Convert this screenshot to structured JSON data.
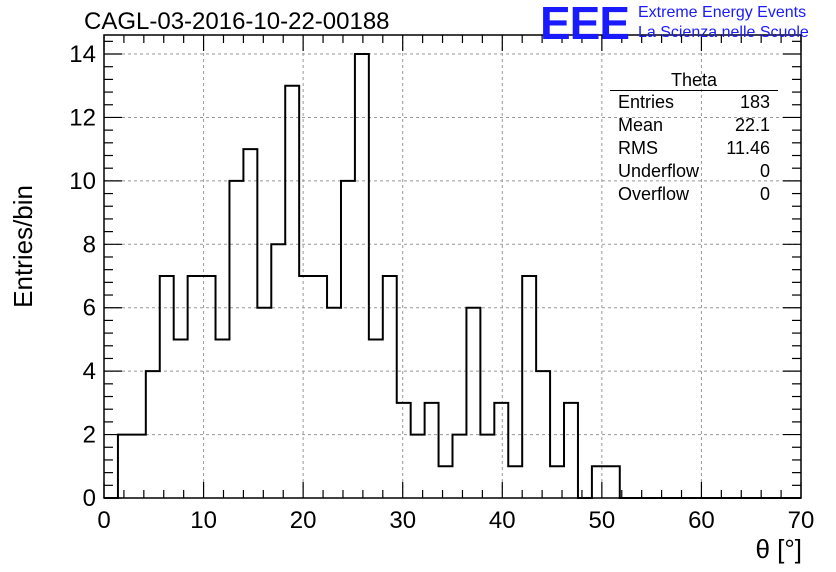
{
  "title": "CAGL-03-2016-10-22-00188",
  "logo": {
    "text": "EEE",
    "line1": "Extreme Energy Events",
    "line2": "La Scienza nelle Scuole",
    "color": "#1a1aff"
  },
  "stats": {
    "title": "Theta",
    "rows": [
      {
        "label": "Entries",
        "value": "183"
      },
      {
        "label": "Mean",
        "value": "22.1"
      },
      {
        "label": "RMS",
        "value": "11.46"
      },
      {
        "label": "Underflow",
        "value": "0"
      },
      {
        "label": "Overflow",
        "value": "0"
      }
    ]
  },
  "chart_data": {
    "type": "bar",
    "style": "step-histogram",
    "xlabel": "θ [°]",
    "ylabel": "Entries/bin",
    "xlim": [
      0,
      70
    ],
    "ylim": [
      0,
      14.6
    ],
    "grid": true,
    "bin_width": 1.4,
    "x_ticks": [
      "0",
      "10",
      "20",
      "30",
      "40",
      "50",
      "60",
      "70"
    ],
    "y_ticks": [
      "0",
      "2",
      "4",
      "6",
      "8",
      "10",
      "12",
      "14"
    ],
    "values": [
      0,
      2,
      2,
      4,
      7,
      5,
      7,
      7,
      5,
      10,
      11,
      6,
      8,
      13,
      7,
      7,
      6,
      10,
      14,
      5,
      7,
      3,
      2,
      3,
      1,
      2,
      6,
      2,
      3,
      1,
      7,
      4,
      1,
      3,
      0,
      1,
      1,
      0,
      0,
      0,
      0,
      0,
      0,
      0,
      0,
      0,
      0,
      0,
      0,
      0
    ]
  }
}
